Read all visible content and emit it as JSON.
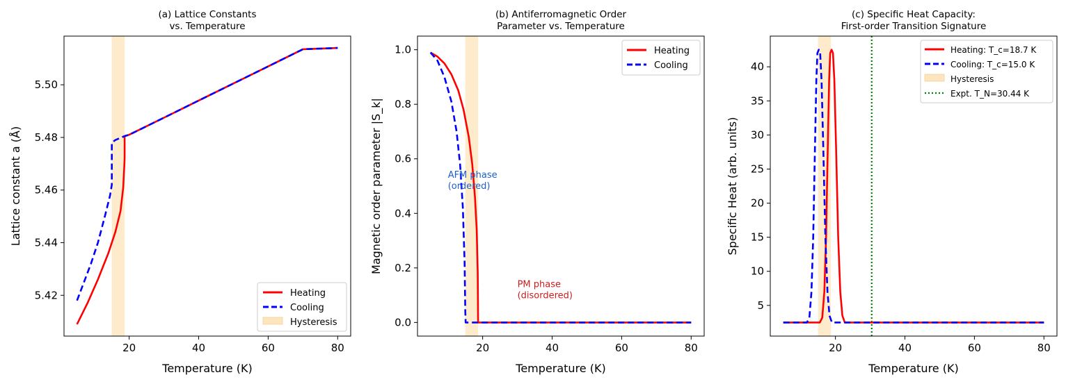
{
  "chart_data": [
    {
      "id": "a",
      "type": "line",
      "title_lines": [
        "(a) Lattice Constants",
        "vs. Temperature"
      ],
      "xlabel": "Temperature (K)",
      "ylabel": "Lattice constant a (Å)",
      "xlim": [
        1.25,
        83.75
      ],
      "ylim": [
        5.4045,
        5.5185
      ],
      "xticks": [
        20,
        40,
        60,
        80
      ],
      "xtick_labels": [
        "20",
        "40",
        "60",
        "80"
      ],
      "yticks": [
        5.42,
        5.44,
        5.46,
        5.48,
        5.5
      ],
      "ytick_labels": [
        "5.42",
        "5.44",
        "5.46",
        "5.48",
        "5.50"
      ],
      "grid": false,
      "legend_position": "lower-right",
      "shaded_band": {
        "x0": 15.0,
        "x1": 18.7,
        "label": "Hysteresis",
        "color": "#fde6bf"
      },
      "series": [
        {
          "name": "Heating",
          "color": "#ff0000",
          "style": "solid",
          "x": [
            5,
            8,
            11,
            14,
            16,
            17.5,
            18.3,
            18.6,
            18.7,
            18.7,
            20,
            30,
            40,
            50,
            60,
            70,
            80
          ],
          "y": [
            5.409,
            5.417,
            5.426,
            5.436,
            5.444,
            5.452,
            5.461,
            5.469,
            5.472,
            5.4805,
            5.481,
            5.4875,
            5.494,
            5.5005,
            5.507,
            5.5135,
            5.514
          ]
        },
        {
          "name": "Cooling",
          "color": "#0000ff",
          "style": "dashed",
          "x": [
            5,
            7,
            9,
            11,
            13,
            14.5,
            15.0,
            15.0,
            16,
            18.7,
            20,
            30,
            40,
            50,
            60,
            70,
            80
          ],
          "y": [
            5.418,
            5.425,
            5.432,
            5.44,
            5.45,
            5.458,
            5.462,
            5.478,
            5.479,
            5.4805,
            5.481,
            5.4875,
            5.494,
            5.5005,
            5.507,
            5.5135,
            5.514
          ]
        }
      ],
      "legend": [
        "Heating",
        "Cooling",
        "Hysteresis"
      ]
    },
    {
      "id": "b",
      "type": "line",
      "title_lines": [
        "(b) Antiferromagnetic Order",
        "Parameter vs. Temperature"
      ],
      "xlabel": "Temperature (K)",
      "ylabel": "Magnetic order parameter |S_k|",
      "xlim": [
        1.25,
        83.75
      ],
      "ylim": [
        -0.05,
        1.05
      ],
      "xticks": [
        20,
        40,
        60,
        80
      ],
      "xtick_labels": [
        "20",
        "40",
        "60",
        "80"
      ],
      "yticks": [
        0.0,
        0.2,
        0.4,
        0.6,
        0.8,
        1.0
      ],
      "ytick_labels": [
        "0.0",
        "0.2",
        "0.4",
        "0.6",
        "0.8",
        "1.0"
      ],
      "grid": false,
      "legend_position": "top-right",
      "shaded_band": {
        "x0": 15.0,
        "x1": 18.7,
        "color": "#fde6bf"
      },
      "series": [
        {
          "name": "Heating",
          "color": "#ff0000",
          "style": "solid",
          "x": [
            5,
            7,
            9,
            11,
            13,
            14.5,
            16,
            17,
            17.8,
            18.3,
            18.6,
            18.7,
            18.9,
            20,
            30,
            40,
            50,
            60,
            70,
            80
          ],
          "y": [
            0.99,
            0.975,
            0.95,
            0.91,
            0.85,
            0.78,
            0.68,
            0.58,
            0.46,
            0.34,
            0.18,
            0.0,
            0.0,
            0.0,
            0.0,
            0.0,
            0.0,
            0.0,
            0.0,
            0.0
          ]
        },
        {
          "name": "Cooling",
          "color": "#0000ff",
          "style": "dashed",
          "x": [
            5,
            7,
            9,
            11,
            12.5,
            13.5,
            14.3,
            14.8,
            15.0,
            15.1,
            16,
            20,
            30,
            40,
            50,
            60,
            70,
            80
          ],
          "y": [
            0.99,
            0.96,
            0.9,
            0.81,
            0.7,
            0.58,
            0.42,
            0.22,
            0.04,
            0.0,
            0.0,
            0.0,
            0.0,
            0.0,
            0.0,
            0.0,
            0.0,
            0.0
          ]
        }
      ],
      "legend": [
        "Heating",
        "Cooling"
      ],
      "annotations": [
        {
          "lines": [
            "AFM phase",
            "(ordered)"
          ],
          "x": 10,
          "y": 0.53,
          "color": "#1f5fc8"
        },
        {
          "lines": [
            "PM phase",
            "(disordered)"
          ],
          "x": 30,
          "y": 0.13,
          "color": "#c81e1e"
        }
      ]
    },
    {
      "id": "c",
      "type": "line",
      "title_lines": [
        "(c) Specific Heat Capacity:",
        "First-order Transition Signature"
      ],
      "xlabel": "Temperature (K)",
      "ylabel": "Specific Heat (arb. units)",
      "xlim": [
        1.25,
        83.75
      ],
      "ylim": [
        0.5,
        44.5
      ],
      "xticks": [
        20,
        40,
        60,
        80
      ],
      "xtick_labels": [
        "20",
        "40",
        "60",
        "80"
      ],
      "yticks": [
        5,
        10,
        15,
        20,
        25,
        30,
        35,
        40
      ],
      "ytick_labels": [
        "5",
        "10",
        "15",
        "20",
        "25",
        "30",
        "35",
        "40"
      ],
      "grid": false,
      "legend_position": "top-right",
      "shaded_band": {
        "x0": 15.0,
        "x1": 18.7,
        "label": "Hysteresis",
        "color": "#fde6bf"
      },
      "vline": {
        "x": 30.44,
        "label": "Expt. T_N=30.44 K",
        "color": "#008000",
        "style": "dotted"
      },
      "series": [
        {
          "name": "Heating: T_c=18.7 K",
          "color": "#ff0000",
          "style": "solid",
          "x": [
            5,
            15.5,
            16.2,
            16.8,
            17.3,
            17.8,
            18.2,
            18.5,
            18.9,
            19.3,
            19.7,
            20.2,
            20.8,
            21.4,
            22.0,
            22.7,
            80
          ],
          "y": [
            2.5,
            2.5,
            3.2,
            7.0,
            15.0,
            28.0,
            38.0,
            42.0,
            42.5,
            42.0,
            38.0,
            28.0,
            15.0,
            7.0,
            3.5,
            2.5,
            2.5
          ]
        },
        {
          "name": "Cooling: T_c=15.0 K",
          "color": "#0000ff",
          "style": "dashed",
          "x": [
            5,
            11.8,
            12.5,
            13.1,
            13.6,
            14.1,
            14.5,
            14.8,
            15.2,
            15.6,
            16.0,
            16.5,
            17.1,
            17.7,
            18.3,
            19.0,
            80
          ],
          "y": [
            2.5,
            2.5,
            3.2,
            7.0,
            15.0,
            28.0,
            38.0,
            42.0,
            42.5,
            42.0,
            38.0,
            28.0,
            15.0,
            7.0,
            3.5,
            2.5,
            2.5
          ]
        }
      ],
      "legend": [
        "Heating: T_c=18.7 K",
        "Cooling: T_c=15.0 K",
        "Hysteresis",
        "Expt. T_N=30.44 K"
      ]
    }
  ]
}
